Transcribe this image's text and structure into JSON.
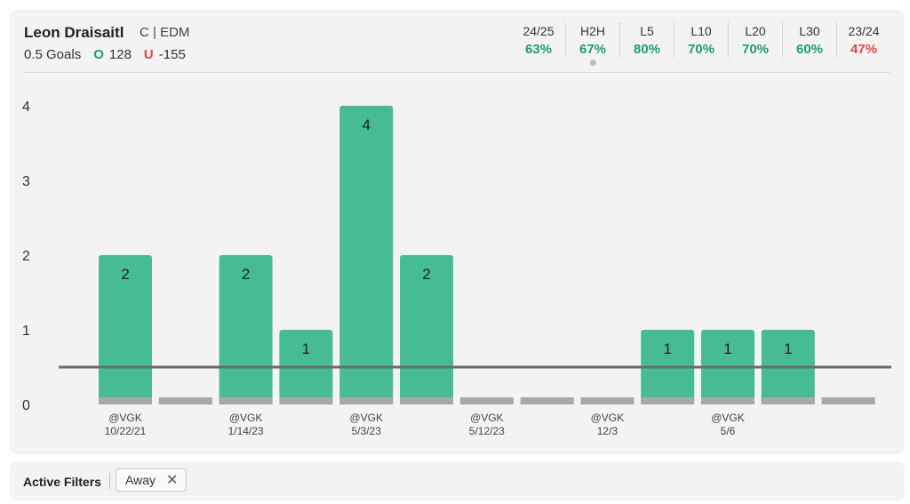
{
  "player": {
    "name": "Leon Draisaitl",
    "meta": "C | EDM",
    "prop": "0.5 Goals",
    "over_label": "O",
    "over_odds": "128",
    "under_label": "U",
    "under_odds": "-155"
  },
  "stats": [
    {
      "label": "24/25",
      "value": "63%",
      "status": "pos"
    },
    {
      "label": "H2H",
      "value": "67%",
      "status": "pos",
      "selected": true
    },
    {
      "label": "L5",
      "value": "80%",
      "status": "pos"
    },
    {
      "label": "L10",
      "value": "70%",
      "status": "pos"
    },
    {
      "label": "L20",
      "value": "70%",
      "status": "pos"
    },
    {
      "label": "L30",
      "value": "60%",
      "status": "pos"
    },
    {
      "label": "23/24",
      "value": "47%",
      "status": "neg"
    }
  ],
  "colors": {
    "bar": "#47bb93",
    "baseline": "#a8a8a8",
    "line": "#6b6b6b",
    "positive": "#1e9e6a",
    "negative": "#e04848"
  },
  "chart_data": {
    "type": "bar",
    "categories": [
      "@VGK 10/22/21",
      "",
      "@VGK 1/14/23",
      "",
      "@VGK 5/3/23",
      "",
      "@VGK 5/12/23",
      "",
      "@VGK 12/3",
      "",
      "@VGK 5/6",
      "",
      ""
    ],
    "category_labels": [
      {
        "opp": "@VGK",
        "date": "10/22/21"
      },
      {
        "opp": "",
        "date": ""
      },
      {
        "opp": "@VGK",
        "date": "1/14/23"
      },
      {
        "opp": "",
        "date": ""
      },
      {
        "opp": "@VGK",
        "date": "5/3/23"
      },
      {
        "opp": "",
        "date": ""
      },
      {
        "opp": "@VGK",
        "date": "5/12/23"
      },
      {
        "opp": "",
        "date": ""
      },
      {
        "opp": "@VGK",
        "date": "12/3"
      },
      {
        "opp": "",
        "date": ""
      },
      {
        "opp": "@VGK",
        "date": "5/6"
      },
      {
        "opp": "",
        "date": ""
      },
      {
        "opp": "",
        "date": ""
      }
    ],
    "values": [
      2,
      0,
      2,
      1,
      4,
      2,
      0,
      0,
      0,
      1,
      1,
      1,
      0
    ],
    "line": 0.5,
    "yticks": [
      0,
      1,
      2,
      3,
      4
    ],
    "ylim": [
      0,
      4
    ],
    "title": "",
    "xlabel": "",
    "ylabel": ""
  },
  "filters": {
    "label": "Active Filters",
    "chips": [
      {
        "label": "Away",
        "remove_icon": "close-icon"
      }
    ]
  }
}
